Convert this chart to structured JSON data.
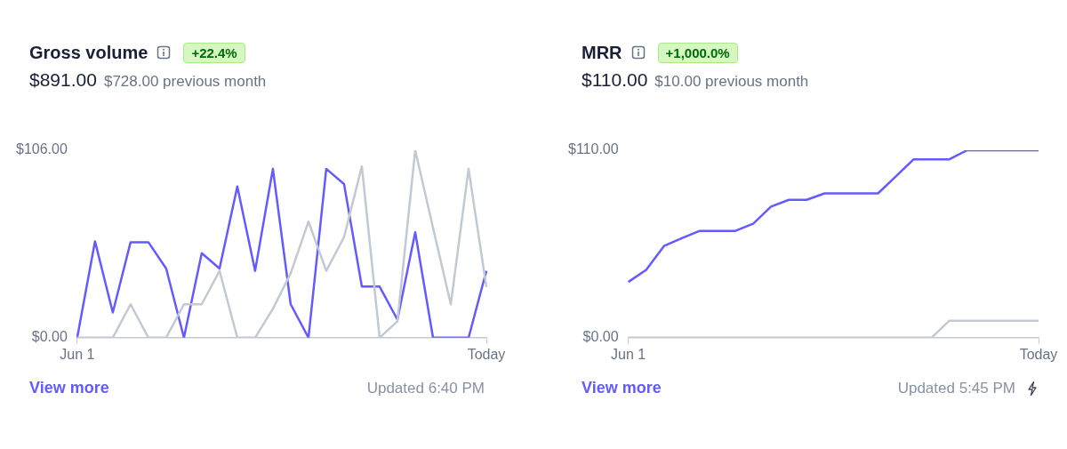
{
  "chart_data": [
    {
      "type": "line",
      "title": "Gross volume",
      "annotations": [
        "+22.4%",
        "$891.00",
        "$728.00 previous month",
        "View more",
        "Updated 6:40 PM"
      ],
      "categories": [
        "Jun 1",
        null,
        null,
        null,
        null,
        null,
        null,
        null,
        null,
        null,
        null,
        null,
        null,
        null,
        null,
        null,
        null,
        null,
        null,
        null,
        null,
        null,
        null,
        "Today"
      ],
      "series": [
        {
          "color": "#c1c9d2",
          "values": [
            0,
            0,
            0,
            18.9,
            0,
            0,
            18.9,
            18.9,
            37.8,
            0,
            0,
            16.3,
            36.4,
            65.7,
            37.8,
            56.9,
            96.9,
            0,
            9.3,
            106,
            62.2,
            18.9,
            95.5,
            28.6
          ]
        },
        {
          "color": "#635bff",
          "values": [
            0,
            54.5,
            14.2,
            54.0,
            54.0,
            39.1,
            0,
            47.8,
            39.1,
            85.5,
            37.8,
            95.5,
            18.9,
            0,
            95.5,
            86.9,
            28.9,
            28.9,
            10.2,
            59.6,
            0,
            0,
            0,
            37.8
          ]
        }
      ],
      "ylim": [
        0,
        106
      ],
      "yticks": [
        {
          "value": 0,
          "label": "$0.00"
        },
        {
          "value": 106,
          "label": "$106.00"
        }
      ],
      "grid": false,
      "legend": false,
      "marker": "none"
    },
    {
      "type": "line",
      "title": "MRR",
      "annotations": [
        "+1,000.0%",
        "$110.00",
        "$10.00 previous month",
        "View more",
        "Updated 5:45 PM"
      ],
      "categories": [
        "Jun 1",
        null,
        null,
        null,
        null,
        null,
        null,
        null,
        null,
        null,
        null,
        null,
        null,
        null,
        null,
        null,
        null,
        null,
        null,
        null,
        null,
        null,
        null,
        "Today"
      ],
      "series": [
        {
          "color": "#c1c9d2",
          "values": [
            0,
            0,
            0,
            0,
            0,
            0,
            0,
            0,
            0,
            0,
            0,
            0,
            0,
            0,
            0,
            0,
            0,
            0,
            10,
            10,
            10,
            10,
            10,
            10
          ]
        },
        {
          "color": "#635bff",
          "values": [
            32.7,
            39.8,
            53.8,
            58.4,
            62.7,
            62.7,
            62.7,
            66.9,
            76.9,
            80.9,
            80.9,
            84.7,
            84.7,
            84.7,
            84.7,
            94.7,
            104.7,
            104.7,
            104.7,
            110,
            110,
            110,
            110,
            110
          ]
        }
      ],
      "ylim": [
        0,
        110
      ],
      "yticks": [
        {
          "value": 0,
          "label": "$0.00"
        },
        {
          "value": 110,
          "label": "$110.00"
        }
      ],
      "grid": false,
      "legend": false,
      "marker": "none"
    }
  ]
}
